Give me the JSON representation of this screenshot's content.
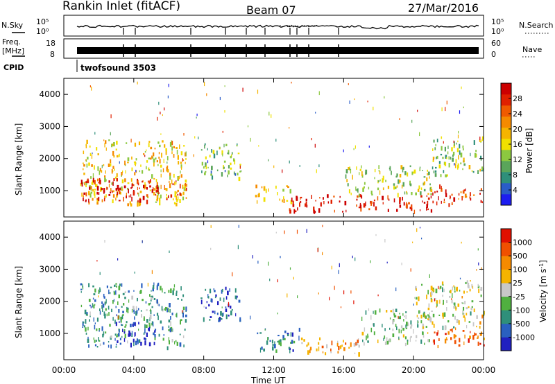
{
  "header": {
    "station": "Rankin Inlet (fitACF)",
    "beam": "Beam 07",
    "date": "27/Mar/2016"
  },
  "status_panels": {
    "nsky": {
      "label": "N.Sky",
      "left_ticks": [
        "10^5",
        "10^0"
      ],
      "right_ticks": [
        "10^5",
        "10^0"
      ],
      "right_label": "N.Search"
    },
    "freq": {
      "label_line1": "Freq.",
      "label_line2": "[MHz]",
      "left_ticks": [
        "18",
        "8"
      ],
      "right_ticks": [
        "60",
        "0"
      ],
      "right_label": "Nave"
    },
    "cpid": {
      "label": "CPID",
      "mode": "twofsound 3503"
    }
  },
  "x_axis": {
    "label": "Time UT",
    "ticks": [
      "00:00",
      "04:00",
      "08:00",
      "12:00",
      "16:00",
      "20:00",
      "00:00"
    ]
  },
  "chart_data": [
    {
      "type": "heatmap",
      "panel": "power",
      "ylabel": "Slant Range [km]",
      "xlim": [
        0,
        24
      ],
      "ylim": [
        180,
        4500
      ],
      "yticks": [
        1000,
        2000,
        3000,
        4000
      ],
      "colorbar": {
        "label": "Power [dB]",
        "ticks": [
          "4",
          "8",
          "12",
          "16",
          "20",
          "24",
          "28"
        ],
        "colors": [
          "#1d1df0",
          "#2a5cc8",
          "#2f8f7a",
          "#5aa55a",
          "#8cc840",
          "#f0e000",
          "#f5b400",
          "#f58a00",
          "#f05a00",
          "#e02000",
          "#cc0000"
        ]
      },
      "regions": [
        {
          "t": [
            0.9,
            7.0
          ],
          "r": [
            600,
            2600
          ],
          "v": 0.55
        },
        {
          "t": [
            0.9,
            7.0
          ],
          "r": [
            700,
            1400
          ],
          "v": 0.95
        },
        {
          "t": [
            7.8,
            10.1
          ],
          "r": [
            1400,
            2500
          ],
          "v": 0.35
        },
        {
          "t": [
            10.9,
            13.0
          ],
          "r": [
            700,
            1200
          ],
          "v": 0.6
        },
        {
          "t": [
            12.8,
            16.0
          ],
          "r": [
            350,
            900
          ],
          "v": 0.95
        },
        {
          "t": [
            16.0,
            21.0
          ],
          "r": [
            400,
            900
          ],
          "v": 0.9
        },
        {
          "t": [
            16.0,
            21.0
          ],
          "r": [
            900,
            1800
          ],
          "v": 0.45
        },
        {
          "t": [
            21.0,
            24.0
          ],
          "r": [
            600,
            1200
          ],
          "v": 0.85
        },
        {
          "t": [
            21.0,
            24.0
          ],
          "r": [
            1500,
            2700
          ],
          "v": 0.4
        }
      ]
    },
    {
      "type": "heatmap",
      "panel": "velocity",
      "ylabel": "Slant Range [km]",
      "xlim": [
        0,
        24
      ],
      "ylim": [
        180,
        4500
      ],
      "yticks": [
        1000,
        2000,
        3000,
        4000
      ],
      "colorbar": {
        "label": "Velocity [m s^-1]",
        "ticks": [
          "1000",
          "500",
          "100",
          "25",
          "-25",
          "-100",
          "-500",
          "-1000"
        ],
        "colors": [
          "#2020c0",
          "#2a60c0",
          "#2f8f7a",
          "#50b040",
          "#c8c8c8",
          "#f5b400",
          "#f58a00",
          "#f05000",
          "#e01000"
        ]
      },
      "regions": [
        {
          "t": [
            0.9,
            7.0
          ],
          "r": [
            600,
            2600
          ],
          "v": 0.3
        },
        {
          "t": [
            2.5,
            5.2
          ],
          "r": [
            700,
            1400
          ],
          "v": 0.05
        },
        {
          "t": [
            7.8,
            10.1
          ],
          "r": [
            1400,
            2500
          ],
          "v": 0.15
        },
        {
          "t": [
            10.9,
            13.5
          ],
          "r": [
            500,
            1200
          ],
          "v": 0.25
        },
        {
          "t": [
            13.5,
            17.0
          ],
          "r": [
            400,
            900
          ],
          "v": 0.65
        },
        {
          "t": [
            17.0,
            21.0
          ],
          "r": [
            700,
            1800
          ],
          "v": 0.4
        },
        {
          "t": [
            20.0,
            24.0
          ],
          "r": [
            1200,
            2700
          ],
          "v": 0.5
        },
        {
          "t": [
            21.0,
            24.0
          ],
          "r": [
            600,
            1200
          ],
          "v": 0.8
        }
      ]
    }
  ]
}
